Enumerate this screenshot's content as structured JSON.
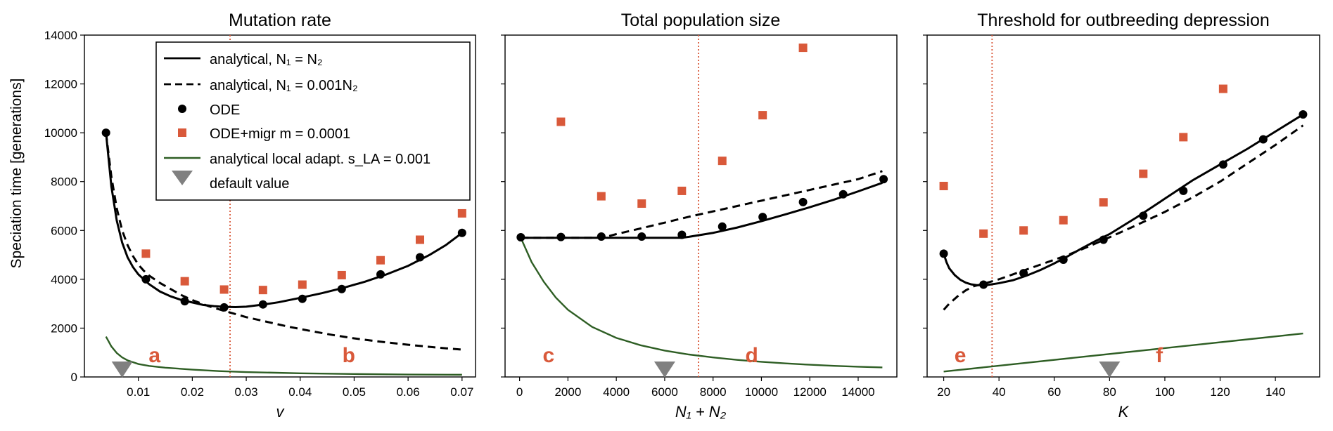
{
  "figure": {
    "ylabel": "Speciation time [generations]",
    "legend": {
      "entries": [
        {
          "key": "analytical_equal",
          "label": "analytical, N₁ = N₂",
          "style": "solid"
        },
        {
          "key": "analytical_asym",
          "label": "analytical, N₁ = 0.001N₂",
          "style": "dashed"
        },
        {
          "key": "ode",
          "label": "ODE",
          "style": "dot"
        },
        {
          "key": "ode_migr",
          "label": "ODE+migr m = 0.0001",
          "style": "square"
        },
        {
          "key": "local_adapt",
          "label": "analytical local adapt. s_LA = 0.001",
          "style": "green"
        },
        {
          "key": "default",
          "label": "default value",
          "style": "triangle"
        }
      ]
    },
    "colors": {
      "black": "#000000",
      "orange": "#d9593a",
      "green": "#2e5e24",
      "grey": "#808080",
      "vline": "#d9593a"
    }
  },
  "chart_data": [
    {
      "type": "line",
      "title": "Mutation rate",
      "xlabel": "v",
      "ylabel": "Speciation time [generations]",
      "xlim": [
        0.0,
        0.0725
      ],
      "ylim": [
        0,
        14000
      ],
      "xticks": [
        0.01,
        0.02,
        0.03,
        0.04,
        0.05,
        0.06,
        0.07
      ],
      "xtick_labels": [
        "0.01",
        "0.02",
        "0.03",
        "0.04",
        "0.05",
        "0.06",
        "0.07"
      ],
      "yticks": [
        0,
        2000,
        4000,
        6000,
        8000,
        10000,
        12000,
        14000
      ],
      "ytick_labels": [
        "0",
        "2000",
        "4000",
        "6000",
        "8000",
        "10000",
        "12000",
        "14000"
      ],
      "vline": 0.027,
      "default_value": 0.007,
      "panel_labels": [
        {
          "text": "a",
          "x": 0.013,
          "y": 600
        },
        {
          "text": "b",
          "x": 0.049,
          "y": 600
        }
      ],
      "series": [
        {
          "name": "analytical, N₁ = N₂",
          "key": "analytical_equal",
          "x": [
            0.004,
            0.005,
            0.006,
            0.007,
            0.008,
            0.009,
            0.01,
            0.011,
            0.012,
            0.014,
            0.016,
            0.018,
            0.02,
            0.022,
            0.024,
            0.026,
            0.028,
            0.03,
            0.033,
            0.036,
            0.04,
            0.044,
            0.048,
            0.052,
            0.056,
            0.06,
            0.064,
            0.067,
            0.07
          ],
          "y": [
            10000,
            7800,
            6400,
            5500,
            4900,
            4500,
            4200,
            4000,
            3800,
            3500,
            3300,
            3150,
            3050,
            2950,
            2900,
            2870,
            2860,
            2880,
            2960,
            3060,
            3240,
            3430,
            3650,
            3900,
            4200,
            4550,
            5000,
            5400,
            5900
          ]
        },
        {
          "name": "analytical, N₁ = 0.001N₂",
          "key": "analytical_asym",
          "x": [
            0.004,
            0.005,
            0.006,
            0.007,
            0.008,
            0.009,
            0.01,
            0.011,
            0.012,
            0.014,
            0.016,
            0.018,
            0.02,
            0.023,
            0.026,
            0.03,
            0.034,
            0.038,
            0.042,
            0.046,
            0.05,
            0.055,
            0.06,
            0.065,
            0.07
          ],
          "y": [
            10000,
            8200,
            6900,
            6000,
            5400,
            4950,
            4600,
            4350,
            4150,
            3850,
            3600,
            3350,
            3150,
            2900,
            2700,
            2450,
            2250,
            2050,
            1880,
            1720,
            1580,
            1440,
            1320,
            1210,
            1120
          ]
        },
        {
          "name": "ODE",
          "key": "ode",
          "x": [
            0.004,
            0.0114,
            0.0186,
            0.0259,
            0.0331,
            0.0404,
            0.0477,
            0.0549,
            0.0622,
            0.07
          ],
          "y": [
            10000,
            4000,
            3100,
            2850,
            2970,
            3200,
            3600,
            4200,
            4900,
            5900
          ]
        },
        {
          "name": "ODE+migr m = 0.0001",
          "key": "ode_migr",
          "x": [
            0.0114,
            0.0186,
            0.0259,
            0.0331,
            0.0404,
            0.0477,
            0.0549,
            0.0622,
            0.07
          ],
          "y": [
            5050,
            3920,
            3580,
            3560,
            3780,
            4170,
            4780,
            5620,
            6700
          ]
        },
        {
          "name": "analytical local adapt. s_LA = 0.001",
          "key": "local_adapt",
          "x": [
            0.004,
            0.005,
            0.006,
            0.007,
            0.008,
            0.01,
            0.012,
            0.015,
            0.02,
            0.025,
            0.03,
            0.04,
            0.05,
            0.06,
            0.07
          ],
          "y": [
            1650,
            1250,
            980,
            800,
            680,
            530,
            450,
            380,
            300,
            240,
            200,
            150,
            120,
            100,
            90
          ]
        }
      ]
    },
    {
      "type": "line",
      "title": "Total population size",
      "xlabel": "N₁ + N₂",
      "ylabel": "",
      "xlim": [
        -600,
        15600
      ],
      "ylim": [
        0,
        14000
      ],
      "xticks": [
        0,
        2000,
        4000,
        6000,
        8000,
        10000,
        12000,
        14000
      ],
      "xtick_labels": [
        "0",
        "2000",
        "4000",
        "6000",
        "8000",
        "10000",
        "12000",
        "14000"
      ],
      "yticks": [
        0,
        2000,
        4000,
        6000,
        8000,
        10000,
        12000,
        14000
      ],
      "ytick_labels": [
        "",
        "",
        "",
        "",
        "",
        "",
        "",
        ""
      ],
      "vline": 7400,
      "default_value": 6000,
      "panel_labels": [
        {
          "text": "c",
          "x": 1200,
          "y": 600
        },
        {
          "text": "d",
          "x": 9600,
          "y": 600
        }
      ],
      "series": [
        {
          "name": "analytical, N₁ = N₂",
          "key": "analytical_equal",
          "x": [
            50,
            1000,
            2000,
            3000,
            4000,
            5000,
            6000,
            6700,
            7000,
            8000,
            9000,
            10000,
            11000,
            12000,
            13000,
            14000,
            15000
          ],
          "y": [
            5700,
            5700,
            5700,
            5700,
            5700,
            5700,
            5700,
            5700,
            5740,
            5900,
            6120,
            6380,
            6660,
            6950,
            7260,
            7600,
            7950
          ]
        },
        {
          "name": "analytical, N₁ = 0.001N₂",
          "key": "analytical_asym",
          "x": [
            50,
            1000,
            2000,
            3000,
            3500,
            4000,
            5000,
            6000,
            7000,
            8000,
            9000,
            10000,
            11000,
            12000,
            13000,
            14000,
            15000
          ],
          "y": [
            5700,
            5700,
            5700,
            5700,
            5720,
            5850,
            6080,
            6320,
            6560,
            6780,
            7000,
            7220,
            7440,
            7660,
            7880,
            8100,
            8430
          ]
        },
        {
          "name": "ODE",
          "key": "ode",
          "x": [
            50,
            1710,
            3380,
            5050,
            6710,
            8380,
            10050,
            11720,
            13380,
            15050
          ],
          "y": [
            5720,
            5730,
            5750,
            5750,
            5820,
            6160,
            6550,
            7160,
            7480,
            8100
          ]
        },
        {
          "name": "ODE+migr m = 0.0001",
          "key": "ode_migr",
          "x": [
            1710,
            3380,
            5050,
            6710,
            8380,
            10050,
            11720
          ],
          "y": [
            10450,
            7400,
            7100,
            7620,
            8850,
            10720,
            13480
          ]
        },
        {
          "name": "analytical local adapt. s_LA = 0.001",
          "key": "local_adapt",
          "x": [
            50,
            500,
            1000,
            1500,
            2000,
            3000,
            4000,
            5000,
            6000,
            7000,
            8000,
            9000,
            10000,
            11000,
            12000,
            13000,
            14000,
            15000
          ],
          "y": [
            5700,
            4700,
            3900,
            3250,
            2750,
            2050,
            1600,
            1300,
            1080,
            920,
            800,
            700,
            620,
            555,
            500,
            455,
            420,
            390
          ]
        }
      ]
    },
    {
      "type": "line",
      "title": "Threshold for outbreeding depression",
      "xlabel": "K",
      "ylabel": "",
      "xlim": [
        14,
        156
      ],
      "ylim": [
        0,
        14000
      ],
      "xticks": [
        20,
        40,
        60,
        80,
        100,
        120,
        140
      ],
      "xtick_labels": [
        "20",
        "40",
        "60",
        "80",
        "100",
        "120",
        "140"
      ],
      "yticks": [
        0,
        2000,
        4000,
        6000,
        8000,
        10000,
        12000,
        14000
      ],
      "ytick_labels": [
        "",
        "",
        "",
        "",
        "",
        "",
        "",
        ""
      ],
      "vline": 37.5,
      "default_value": 80,
      "panel_labels": [
        {
          "text": "e",
          "x": 26,
          "y": 600
        },
        {
          "text": "f",
          "x": 98,
          "y": 600
        }
      ],
      "series": [
        {
          "name": "analytical, N₁ = N₂",
          "key": "analytical_equal",
          "x": [
            20,
            21,
            22,
            24,
            26,
            28,
            30,
            32,
            34,
            36,
            40,
            45,
            50,
            55,
            60,
            65,
            70,
            75,
            80,
            90,
            100,
            110,
            120,
            130,
            140,
            150
          ],
          "y": [
            5050,
            4700,
            4450,
            4170,
            3980,
            3860,
            3790,
            3760,
            3760,
            3770,
            3840,
            3960,
            4150,
            4380,
            4650,
            4950,
            5270,
            5570,
            5850,
            6550,
            7300,
            8050,
            8700,
            9350,
            10050,
            10750
          ]
        },
        {
          "name": "analytical, N₁ = 0.001N₂",
          "key": "analytical_asym",
          "x": [
            20,
            22,
            25,
            28,
            31,
            34,
            37,
            40,
            45,
            50,
            55,
            60,
            65,
            70,
            75,
            80,
            90,
            100,
            110,
            120,
            130,
            140,
            150
          ],
          "y": [
            2750,
            3000,
            3300,
            3550,
            3720,
            3800,
            3900,
            4000,
            4200,
            4400,
            4600,
            4800,
            5000,
            5230,
            5470,
            5720,
            6230,
            6760,
            7350,
            8000,
            8750,
            9500,
            10300
          ]
        },
        {
          "name": "ODE",
          "key": "ode",
          "x": [
            20,
            34.4,
            48.9,
            63.3,
            77.8,
            92.2,
            106.7,
            121.1,
            135.6,
            150
          ],
          "y": [
            5050,
            3780,
            4250,
            4800,
            5620,
            6600,
            7620,
            8700,
            9730,
            10750
          ]
        },
        {
          "name": "ODE+migr m = 0.0001",
          "key": "ode_migr",
          "x": [
            20,
            34.4,
            48.9,
            63.3,
            77.8,
            92.2,
            106.7,
            121.1
          ],
          "y": [
            7820,
            5870,
            6000,
            6420,
            7150,
            8320,
            9820,
            11800
          ]
        },
        {
          "name": "analytical local adapt. s_LA = 0.001",
          "key": "local_adapt",
          "x": [
            20,
            150
          ],
          "y": [
            220,
            1780
          ]
        }
      ]
    }
  ]
}
